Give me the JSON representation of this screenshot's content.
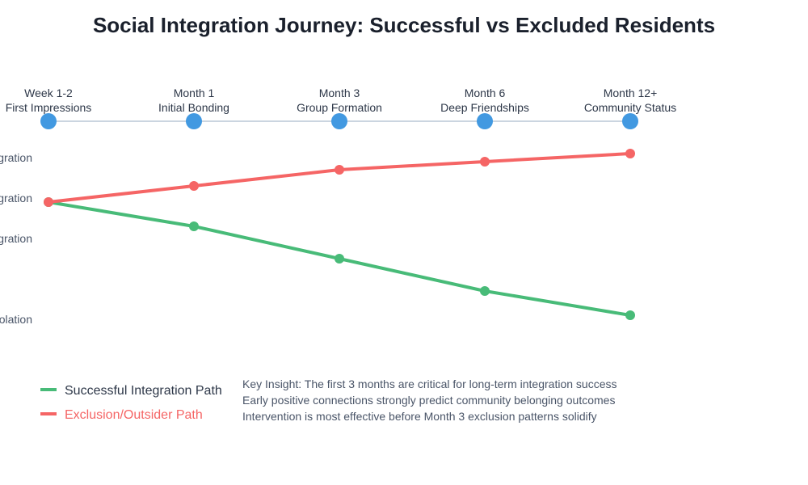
{
  "title": "Social Integration Journey: Successful vs Excluded Residents",
  "colors": {
    "timeline": "#cbd5e0",
    "stage_marker": "#4299e1",
    "success": "#48bb78",
    "exclusion": "#f56565",
    "text": "#2d3748"
  },
  "stages": [
    {
      "line1": "Week 1-2",
      "line2": "First Impressions"
    },
    {
      "line1": "Month 1",
      "line2": "Initial Bonding"
    },
    {
      "line1": "Month 3",
      "line2": "Group Formation"
    },
    {
      "line1": "Month 6",
      "line2": "Deep Friendships"
    },
    {
      "line1": "Month 12+",
      "line2": "Community Status"
    }
  ],
  "y_levels": [
    {
      "label": "gration",
      "value": 1
    },
    {
      "label": "gration",
      "value": 0
    },
    {
      "label": "gration",
      "value": -1
    },
    {
      "label": "olation",
      "value": -3
    }
  ],
  "series": [
    {
      "key": "exclusion",
      "name": "Exclusion/Outsider Path",
      "color": "#f56565",
      "values": [
        0,
        0.4,
        0.8,
        1.0,
        1.2
      ]
    },
    {
      "key": "success",
      "name": "Successful Integration Path",
      "color": "#48bb78",
      "values": [
        0,
        -0.6,
        -1.4,
        -2.2,
        -2.8
      ]
    }
  ],
  "legend": [
    {
      "label": "Successful Integration Path",
      "color": "#48bb78",
      "text_color": "#2d3748"
    },
    {
      "label": "Exclusion/Outsider Path",
      "color": "#f56565",
      "text_color": "#f56565"
    }
  ],
  "insights": [
    "Key Insight: The first 3 months are critical for long-term integration success",
    "Early positive connections strongly predict community belonging outcomes",
    "Intervention is most effective before Month 3 exclusion patterns solidify"
  ]
}
